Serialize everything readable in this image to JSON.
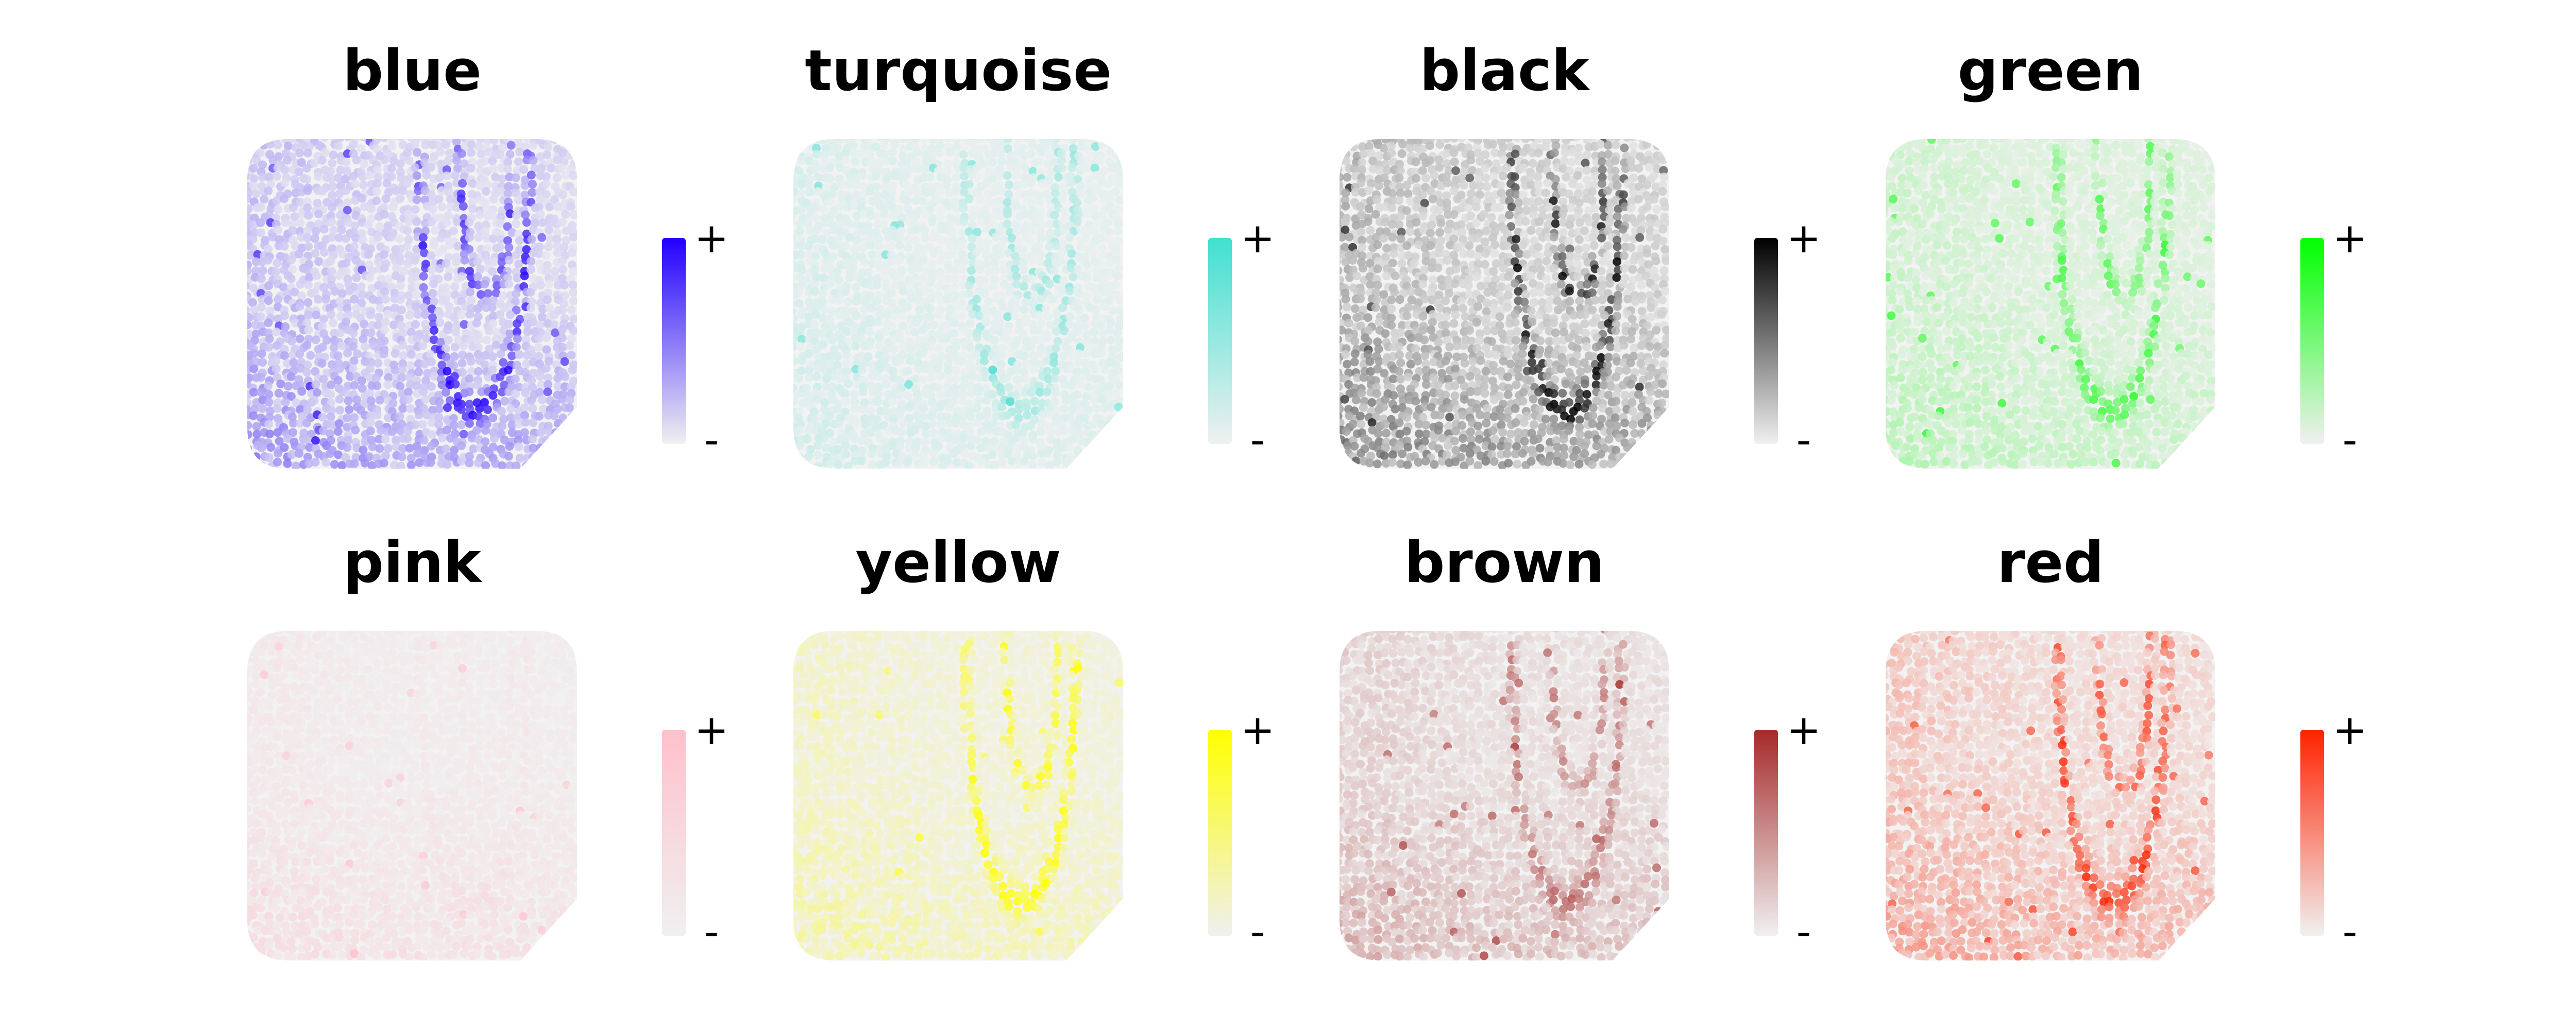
{
  "chart_data": {
    "type": "spatial-feature-plot",
    "panels": [
      {
        "title": "blue",
        "color": "#2200ff",
        "intensity": 0.55,
        "hotspot_weight": 0.9,
        "lower_weight": 0.55
      },
      {
        "title": "turquoise",
        "color": "#40e0d0",
        "intensity": 0.35,
        "hotspot_weight": 0.5,
        "lower_weight": 0.2
      },
      {
        "title": "black",
        "color": "#000000",
        "intensity": 0.6,
        "hotspot_weight": 0.95,
        "lower_weight": 0.6
      },
      {
        "title": "green",
        "color": "#00ff00",
        "intensity": 0.4,
        "hotspot_weight": 0.75,
        "lower_weight": 0.4
      },
      {
        "title": "pink",
        "color": "#ffc0cb",
        "intensity": 0.5,
        "hotspot_weight": 0.15,
        "lower_weight": 0.7
      },
      {
        "title": "yellow",
        "color": "#ffff00",
        "intensity": 0.5,
        "hotspot_weight": 0.95,
        "lower_weight": 0.45
      },
      {
        "title": "brown",
        "color": "#a52a2a",
        "intensity": 0.45,
        "hotspot_weight": 0.6,
        "lower_weight": 0.6
      },
      {
        "title": "red",
        "color": "#ff2200",
        "intensity": 0.55,
        "hotspot_weight": 0.9,
        "lower_weight": 0.55
      }
    ],
    "colorbar": {
      "high_label": "+",
      "low_label": "-",
      "low_color": "#f0f0f0"
    },
    "legend": "right of each panel"
  }
}
